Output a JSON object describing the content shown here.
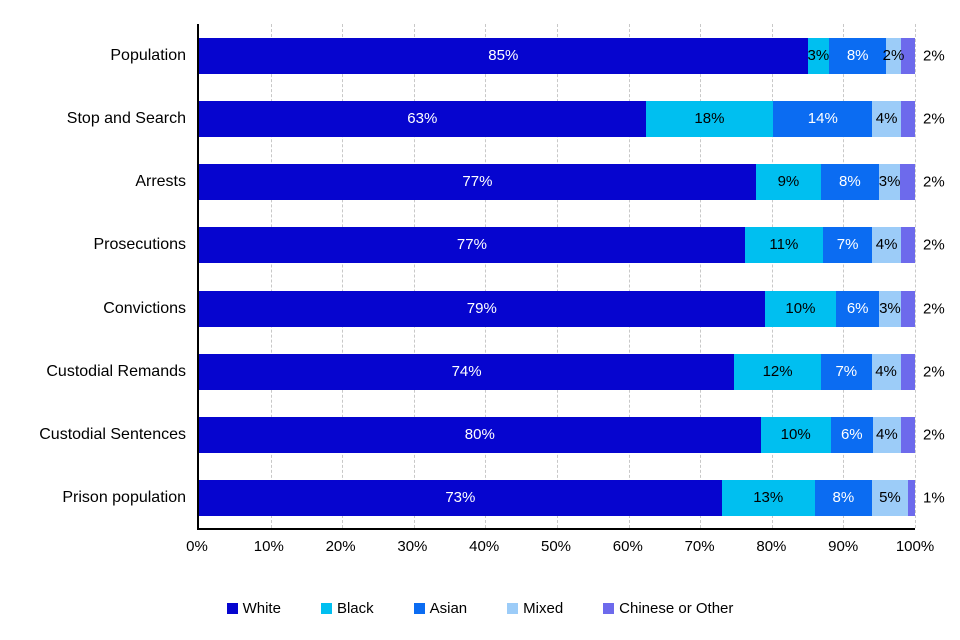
{
  "chart_data": {
    "type": "bar",
    "orientation": "horizontal",
    "stacked": true,
    "title": "",
    "xlabel": "",
    "ylabel": "",
    "xlim": [
      0,
      100
    ],
    "x_ticks": [
      "0%",
      "10%",
      "20%",
      "30%",
      "40%",
      "50%",
      "60%",
      "70%",
      "80%",
      "90%",
      "100%"
    ],
    "grid": "vertical-dashed",
    "gridline_color": "#c8c8c8",
    "legend_position": "bottom",
    "categories": [
      "Population",
      "Stop and Search",
      "Arrests",
      "Prosecutions",
      "Convictions",
      "Custodial Remands",
      "Custodial Sentences",
      "Prison population"
    ],
    "series": [
      {
        "name": "White",
        "color": "#0605CF",
        "label_color": "#ffffff",
        "label_outside": false,
        "values": [
          85,
          63,
          77,
          77,
          79,
          74,
          80,
          73
        ]
      },
      {
        "name": "Black",
        "color": "#00BFF0",
        "label_color": "#000000",
        "label_outside": false,
        "values": [
          3,
          18,
          9,
          11,
          10,
          12,
          10,
          13
        ]
      },
      {
        "name": "Asian",
        "color": "#0B6CF2",
        "label_color": "#ffffff",
        "label_outside": false,
        "values": [
          8,
          14,
          8,
          7,
          6,
          7,
          6,
          8
        ]
      },
      {
        "name": "Mixed",
        "color": "#9CCCF8",
        "label_color": "#000000",
        "label_outside": false,
        "values": [
          2,
          4,
          3,
          4,
          3,
          4,
          4,
          5
        ]
      },
      {
        "name": "Chinese or Other",
        "color": "#6D6AEC",
        "label_color": "#000000",
        "label_outside": true,
        "values": [
          2,
          2,
          2,
          2,
          2,
          2,
          2,
          1
        ]
      }
    ],
    "value_suffix": "%"
  }
}
